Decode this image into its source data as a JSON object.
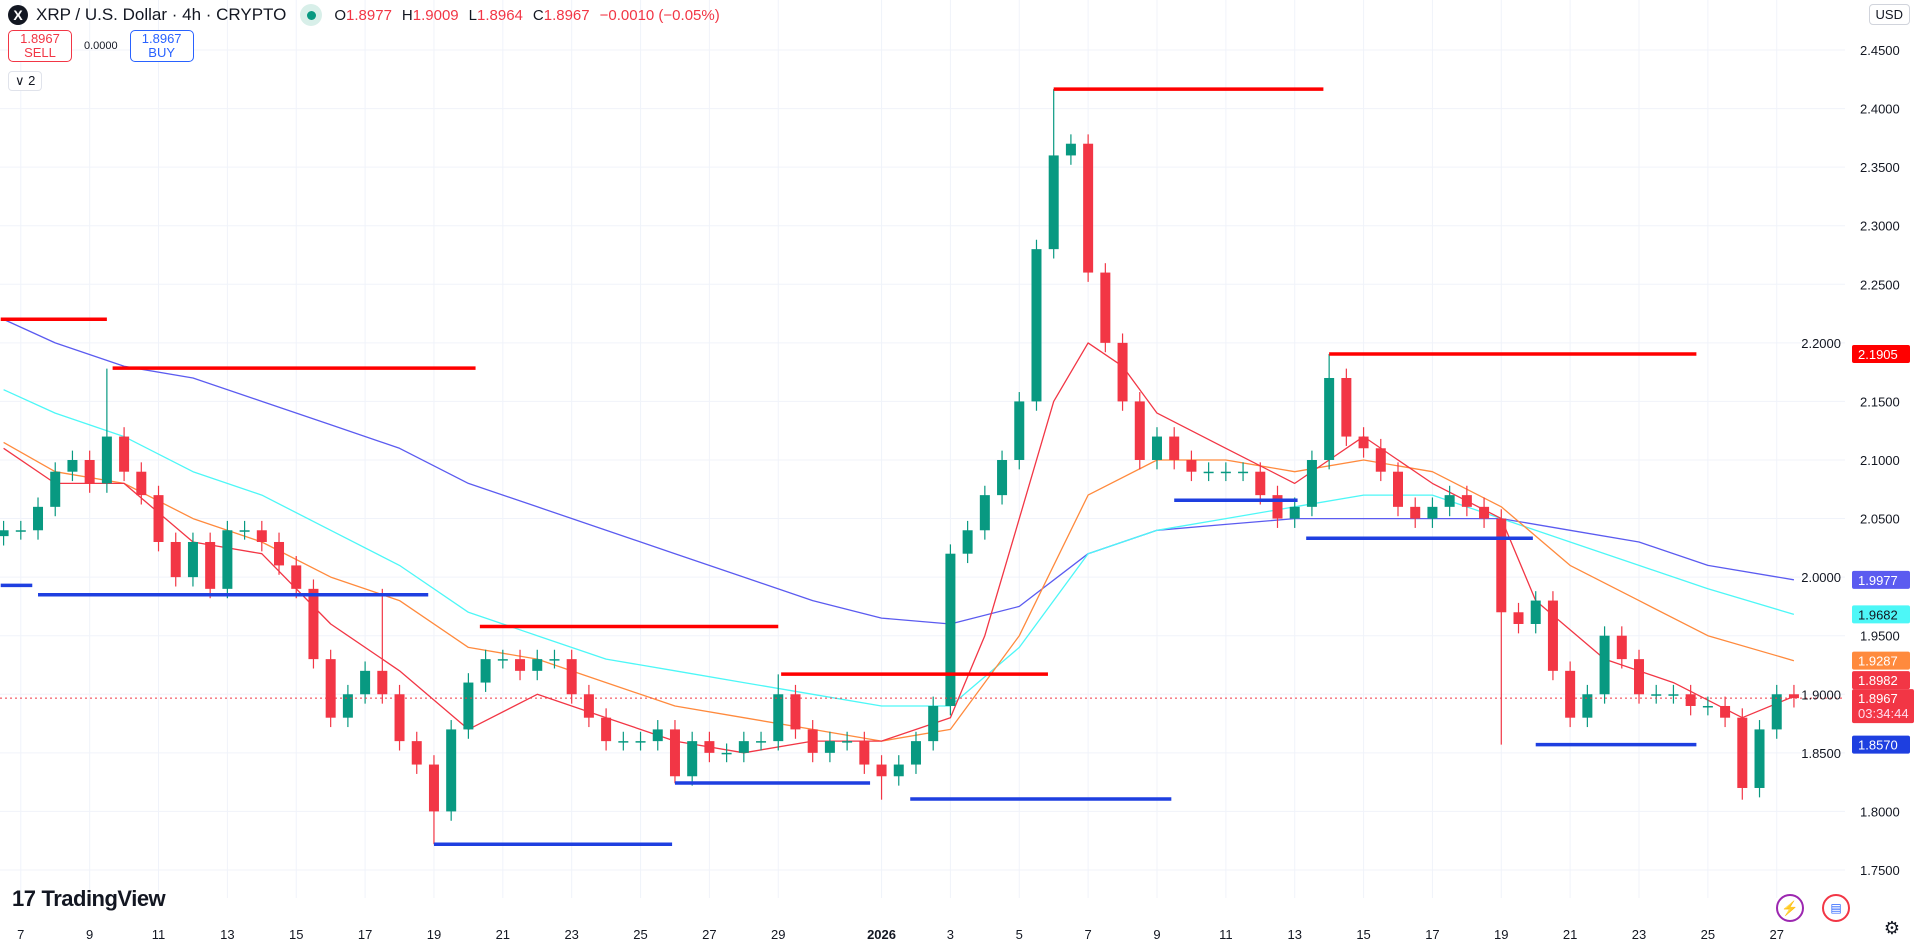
{
  "header": {
    "logo": "X",
    "symbol_title": "XRP / U.S. Dollar · 4h · CRYPTO",
    "market_status_icon": "market-open-dot",
    "ohlc": [
      {
        "key": "O",
        "value": "1.8977"
      },
      {
        "key": "H",
        "value": "1.9009"
      },
      {
        "key": "L",
        "value": "1.8964"
      },
      {
        "key": "C",
        "value": "1.8967"
      }
    ],
    "change": "−0.0010 (−0.05%)"
  },
  "trade": {
    "sell_price": "1.8967",
    "sell_label": "SELL",
    "spread": "0.0000",
    "buy_price": "1.8967",
    "buy_label": "BUY"
  },
  "indicators_toggle": "∨ 2",
  "currency": "USD",
  "branding": {
    "logo_mark": "17",
    "logo_text": "TradingView"
  },
  "footer_icons": [
    "lightning-icon",
    "us-flag-icon",
    "gear-icon"
  ],
  "colors": {
    "up": "#089981",
    "down": "#F23645",
    "ma_fast": "#F23645",
    "ma_mid": "#FF8A3D",
    "ma_slow": "#4DF7F7",
    "ma_long": "#5B5BF0",
    "resistance": "#FF0000",
    "support": "#1E3FE0"
  },
  "chart_data": {
    "type": "candlestick",
    "symbol": "XRP / U.S. Dollar",
    "timeframe": "4h",
    "y_ticks": [
      "2.4500",
      "2.4000",
      "2.3500",
      "2.3000",
      "2.2500",
      "2.2000",
      "2.1500",
      "2.1000",
      "2.0500",
      "2.0000",
      "1.9500",
      "1.9000",
      "1.8500",
      "1.8000",
      "1.7500"
    ],
    "ylim": [
      1.73,
      2.49
    ],
    "x_ticks": [
      {
        "t": "2025-12-07",
        "label": "7"
      },
      {
        "t": "2025-12-09",
        "label": "9"
      },
      {
        "t": "2025-12-11",
        "label": "11"
      },
      {
        "t": "2025-12-13",
        "label": "13"
      },
      {
        "t": "2025-12-15",
        "label": "15"
      },
      {
        "t": "2025-12-17",
        "label": "17"
      },
      {
        "t": "2025-12-19",
        "label": "19"
      },
      {
        "t": "2025-12-21",
        "label": "21"
      },
      {
        "t": "2025-12-23",
        "label": "23"
      },
      {
        "t": "2025-12-25",
        "label": "25"
      },
      {
        "t": "2025-12-27",
        "label": "27"
      },
      {
        "t": "2025-12-29",
        "label": "29"
      },
      {
        "t": "2026-01-01",
        "label": "2026"
      },
      {
        "t": "2026-01-03",
        "label": "3"
      },
      {
        "t": "2026-01-05",
        "label": "5"
      },
      {
        "t": "2026-01-07",
        "label": "7"
      },
      {
        "t": "2026-01-09",
        "label": "9"
      },
      {
        "t": "2026-01-11",
        "label": "11"
      },
      {
        "t": "2026-01-13",
        "label": "13"
      },
      {
        "t": "2026-01-15",
        "label": "15"
      },
      {
        "t": "2026-01-17",
        "label": "17"
      },
      {
        "t": "2026-01-19",
        "label": "19"
      },
      {
        "t": "2026-01-21",
        "label": "21"
      },
      {
        "t": "2026-01-23",
        "label": "23"
      },
      {
        "t": "2026-01-25",
        "label": "25"
      },
      {
        "t": "2026-01-27",
        "label": "27"
      }
    ],
    "grid": true,
    "candles": {
      "start": "2025-12-06T12:00",
      "step_hours": 12,
      "close": [
        2.04,
        2.04,
        2.06,
        2.09,
        2.1,
        2.08,
        2.12,
        2.09,
        2.07,
        2.03,
        2.0,
        2.03,
        1.99,
        2.04,
        2.04,
        2.03,
        2.01,
        1.99,
        1.93,
        1.88,
        1.9,
        1.92,
        1.9,
        1.86,
        1.84,
        1.8,
        1.87,
        1.91,
        1.93,
        1.93,
        1.92,
        1.93,
        1.93,
        1.9,
        1.88,
        1.86,
        1.86,
        1.86,
        1.87,
        1.83,
        1.86,
        1.85,
        1.85,
        1.86,
        1.86,
        1.9,
        1.87,
        1.85,
        1.86,
        1.86,
        1.84,
        1.83,
        1.84,
        1.86,
        1.89,
        2.02,
        2.04,
        2.07,
        2.1,
        2.15,
        2.28,
        2.36,
        2.37,
        2.26,
        2.2,
        2.15,
        2.1,
        2.12,
        2.1,
        2.09,
        2.09,
        2.09,
        2.09,
        2.07,
        2.05,
        2.06,
        2.1,
        2.17,
        2.12,
        2.11,
        2.09,
        2.06,
        2.05,
        2.06,
        2.07,
        2.06,
        2.05,
        1.97,
        1.96,
        1.98,
        1.92,
        1.88,
        1.9,
        1.95,
        1.93,
        1.9,
        1.9,
        1.9,
        1.89,
        1.89,
        1.88,
        1.82,
        1.87,
        1.9,
        1.8967
      ],
      "wick_extremes": [
        {
          "t": "2025-12-09T12:00",
          "high": 2.178
        },
        {
          "t": "2025-12-17T12:00",
          "high": 1.99
        },
        {
          "t": "2025-12-19T00:00",
          "low": 1.772
        },
        {
          "t": "2025-12-26T00:00",
          "low": 1.824
        },
        {
          "t": "2025-12-29T00:00",
          "high": 1.917
        },
        {
          "t": "2026-01-01T00:00",
          "low": 1.81
        },
        {
          "t": "2026-01-06T00:00",
          "high": 2.4166
        },
        {
          "t": "2026-01-14T00:00",
          "high": 2.1905
        },
        {
          "t": "2026-01-19T00:00",
          "low": 1.857
        },
        {
          "t": "2026-01-26T00:00",
          "low": 1.81
        }
      ]
    },
    "moving_averages": [
      {
        "color_key": "ma_long",
        "points": [
          [
            "2025-12-06T12:00",
            2.22
          ],
          [
            "2025-12-08",
            2.2
          ],
          [
            "2025-12-10",
            2.18
          ],
          [
            "2025-12-12",
            2.17
          ],
          [
            "2025-12-14",
            2.15
          ],
          [
            "2025-12-16",
            2.13
          ],
          [
            "2025-12-18",
            2.11
          ],
          [
            "2025-12-20",
            2.08
          ],
          [
            "2025-12-22",
            2.06
          ],
          [
            "2025-12-24",
            2.04
          ],
          [
            "2025-12-26",
            2.02
          ],
          [
            "2025-12-28",
            2.0
          ],
          [
            "2025-12-30",
            1.98
          ],
          [
            "2026-01-01",
            1.965
          ],
          [
            "2026-01-03",
            1.96
          ],
          [
            "2026-01-05",
            1.975
          ],
          [
            "2026-01-07",
            2.02
          ],
          [
            "2026-01-09",
            2.04
          ],
          [
            "2026-01-11",
            2.045
          ],
          [
            "2026-01-13",
            2.05
          ],
          [
            "2026-01-15",
            2.05
          ],
          [
            "2026-01-17",
            2.05
          ],
          [
            "2026-01-19",
            2.05
          ],
          [
            "2026-01-21",
            2.04
          ],
          [
            "2026-01-23",
            2.03
          ],
          [
            "2026-01-25",
            2.01
          ],
          [
            "2026-01-27T12:00",
            1.9977
          ]
        ]
      },
      {
        "color_key": "ma_slow",
        "points": [
          [
            "2025-12-06T12:00",
            2.16
          ],
          [
            "2025-12-08",
            2.14
          ],
          [
            "2025-12-10",
            2.12
          ],
          [
            "2025-12-12",
            2.09
          ],
          [
            "2025-12-14",
            2.07
          ],
          [
            "2025-12-16",
            2.04
          ],
          [
            "2025-12-18",
            2.01
          ],
          [
            "2025-12-20",
            1.97
          ],
          [
            "2025-12-22",
            1.95
          ],
          [
            "2025-12-24",
            1.93
          ],
          [
            "2025-12-26",
            1.92
          ],
          [
            "2025-12-28",
            1.91
          ],
          [
            "2025-12-30",
            1.9
          ],
          [
            "2026-01-01",
            1.89
          ],
          [
            "2026-01-03",
            1.89
          ],
          [
            "2026-01-05",
            1.94
          ],
          [
            "2026-01-07",
            2.02
          ],
          [
            "2026-01-09",
            2.04
          ],
          [
            "2026-01-11",
            2.05
          ],
          [
            "2026-01-13",
            2.06
          ],
          [
            "2026-01-15",
            2.07
          ],
          [
            "2026-01-17",
            2.07
          ],
          [
            "2026-01-19",
            2.05
          ],
          [
            "2026-01-21",
            2.03
          ],
          [
            "2026-01-23",
            2.01
          ],
          [
            "2026-01-25",
            1.99
          ],
          [
            "2026-01-27T12:00",
            1.9682
          ]
        ]
      },
      {
        "color_key": "ma_mid",
        "points": [
          [
            "2025-12-06T12:00",
            2.115
          ],
          [
            "2025-12-08",
            2.09
          ],
          [
            "2025-12-10",
            2.08
          ],
          [
            "2025-12-12",
            2.05
          ],
          [
            "2025-12-14",
            2.03
          ],
          [
            "2025-12-16",
            2.0
          ],
          [
            "2025-12-18",
            1.98
          ],
          [
            "2025-12-20",
            1.94
          ],
          [
            "2025-12-22",
            1.93
          ],
          [
            "2025-12-24",
            1.91
          ],
          [
            "2025-12-26",
            1.89
          ],
          [
            "2025-12-28",
            1.88
          ],
          [
            "2025-12-30",
            1.87
          ],
          [
            "2026-01-01",
            1.86
          ],
          [
            "2026-01-03",
            1.87
          ],
          [
            "2026-01-05",
            1.95
          ],
          [
            "2026-01-07",
            2.07
          ],
          [
            "2026-01-09",
            2.1
          ],
          [
            "2026-01-11",
            2.1
          ],
          [
            "2026-01-13",
            2.09
          ],
          [
            "2026-01-15",
            2.1
          ],
          [
            "2026-01-17",
            2.09
          ],
          [
            "2026-01-19",
            2.06
          ],
          [
            "2026-01-21",
            2.01
          ],
          [
            "2026-01-23",
            1.98
          ],
          [
            "2026-01-25",
            1.95
          ],
          [
            "2026-01-27T12:00",
            1.9287
          ]
        ]
      },
      {
        "color_key": "ma_fast",
        "points": [
          [
            "2025-12-06T12:00",
            2.11
          ],
          [
            "2025-12-08",
            2.08
          ],
          [
            "2025-12-10",
            2.08
          ],
          [
            "2025-12-12",
            2.03
          ],
          [
            "2025-12-14",
            2.02
          ],
          [
            "2025-12-16",
            1.96
          ],
          [
            "2025-12-18",
            1.92
          ],
          [
            "2025-12-20",
            1.87
          ],
          [
            "2025-12-22",
            1.9
          ],
          [
            "2025-12-24",
            1.88
          ],
          [
            "2025-12-26",
            1.86
          ],
          [
            "2025-12-28",
            1.85
          ],
          [
            "2025-12-30",
            1.86
          ],
          [
            "2026-01-01",
            1.86
          ],
          [
            "2026-01-03",
            1.88
          ],
          [
            "2026-01-04",
            1.95
          ],
          [
            "2026-01-05",
            2.05
          ],
          [
            "2026-01-06",
            2.15
          ],
          [
            "2026-01-07",
            2.2
          ],
          [
            "2026-01-08",
            2.18
          ],
          [
            "2026-01-09",
            2.14
          ],
          [
            "2026-01-11",
            2.11
          ],
          [
            "2026-01-13",
            2.08
          ],
          [
            "2026-01-14",
            2.1
          ],
          [
            "2026-01-15",
            2.12
          ],
          [
            "2026-01-17",
            2.08
          ],
          [
            "2026-01-19",
            2.05
          ],
          [
            "2026-01-20",
            1.98
          ],
          [
            "2026-01-22",
            1.93
          ],
          [
            "2026-01-24",
            1.91
          ],
          [
            "2026-01-26",
            1.88
          ],
          [
            "2026-01-27T12:00",
            1.8982
          ]
        ]
      }
    ],
    "horizontal_levels": [
      {
        "kind": "resistance",
        "price": 2.2202,
        "from": "2025-12-06T10:00",
        "to": "2025-12-09T12:00"
      },
      {
        "kind": "resistance",
        "price": 2.1784,
        "from": "2025-12-09T16:00",
        "to": "2025-12-20T05:00"
      },
      {
        "kind": "support",
        "price": 1.993,
        "from": "2025-12-06T10:00",
        "to": "2025-12-07T08:00"
      },
      {
        "kind": "support",
        "price": 1.985,
        "from": "2025-12-07T12:00",
        "to": "2025-12-18T20:00"
      },
      {
        "kind": "support",
        "price": 1.772,
        "from": "2025-12-19T00:00",
        "to": "2025-12-25T22:00"
      },
      {
        "kind": "resistance",
        "price": 1.9579,
        "from": "2025-12-20T08:00",
        "to": "2025-12-29T00:00"
      },
      {
        "kind": "support",
        "price": 1.8242,
        "from": "2025-12-26T00:00",
        "to": "2025-12-31T16:00"
      },
      {
        "kind": "resistance",
        "price": 1.9172,
        "from": "2025-12-29T02:00",
        "to": "2026-01-05T20:00"
      },
      {
        "kind": "support",
        "price": 1.8106,
        "from": "2026-01-01T20:00",
        "to": "2026-01-09T10:00"
      },
      {
        "kind": "resistance",
        "price": 2.4166,
        "from": "2026-01-06T00:00",
        "to": "2026-01-13T20:00"
      },
      {
        "kind": "support",
        "price": 2.0656,
        "from": "2026-01-09T12:00",
        "to": "2026-01-13T02:00"
      },
      {
        "kind": "support",
        "price": 2.0332,
        "from": "2026-01-13T08:00",
        "to": "2026-01-19T22:00"
      },
      {
        "kind": "resistance",
        "price": 2.1905,
        "from": "2026-01-14T00:00",
        "to": "2026-01-24T16:00"
      },
      {
        "kind": "support",
        "price": 1.857,
        "from": "2026-01-20T00:00",
        "to": "2026-01-24T16:00"
      }
    ],
    "price_markers": [
      {
        "value": "2.1905",
        "color_key": "resistance"
      },
      {
        "value": "1.9977",
        "color_key": "ma_long"
      },
      {
        "value": "1.9682",
        "color_key": "ma_slow"
      },
      {
        "value": "1.9287",
        "color_key": "ma_mid"
      },
      {
        "value": "1.8982",
        "color_key": "ma_fast"
      },
      {
        "value": "1.8570",
        "color_key": "support"
      }
    ],
    "last_price": {
      "value": "1.8967",
      "countdown": "03:34:44"
    }
  }
}
